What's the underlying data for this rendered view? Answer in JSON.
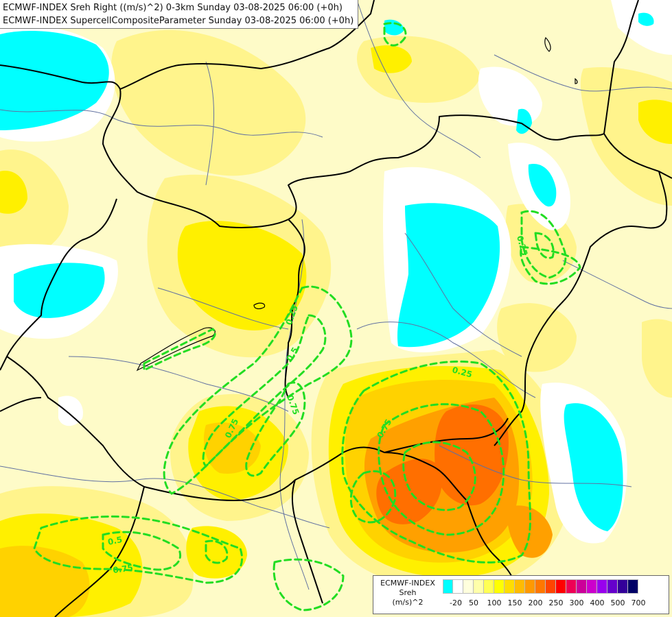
{
  "title": {
    "line1": "ECMWF-INDEX Sreh Right ((m/s)^2) 0-3km Sunday 03-08-2025 06:00 (+0h)",
    "line2": "ECMWF-INDEX SupercellCompositeParameter Sunday 03-08-2025 06:00 (+0h)"
  },
  "legend": {
    "name_line1": "ECMWF-INDEX",
    "name_line2": "Sreh",
    "unit": "(m/s)^2",
    "colors": [
      "#00ffff",
      "#ffffff",
      "#ffffdd",
      "#ffffaa",
      "#ffff55",
      "#ffff00",
      "#ffdd00",
      "#ffbb00",
      "#ff9900",
      "#ff7700",
      "#ff4400",
      "#ff0000",
      "#ee0055",
      "#cc0099",
      "#cc00cc",
      "#9900ee",
      "#6600cc",
      "#330099",
      "#000066"
    ],
    "tick_labels": [
      "-20",
      "50",
      "100",
      "150",
      "200",
      "250",
      "300",
      "400",
      "500",
      "700"
    ]
  },
  "contour_labels": [
    {
      "text": "0.25"
    },
    {
      "text": "0.5"
    },
    {
      "text": "0.75"
    },
    {
      "text": "0.75"
    },
    {
      "text": "0.75"
    },
    {
      "text": "0.25"
    },
    {
      "text": "0.25"
    },
    {
      "text": "0.5"
    },
    {
      "text": "0.75"
    }
  ],
  "colors": {
    "cyan": "#00ffff",
    "white": "#ffffff",
    "pale_yellow": "#fefbc8",
    "light_yellow": "#fff48c",
    "yellow": "#fff000",
    "gold": "#ffd200",
    "orange": "#ffa000",
    "dark_orange": "#ff6f00",
    "contour_green": "#22dd22",
    "border": "#000000",
    "river": "#6070a0"
  }
}
